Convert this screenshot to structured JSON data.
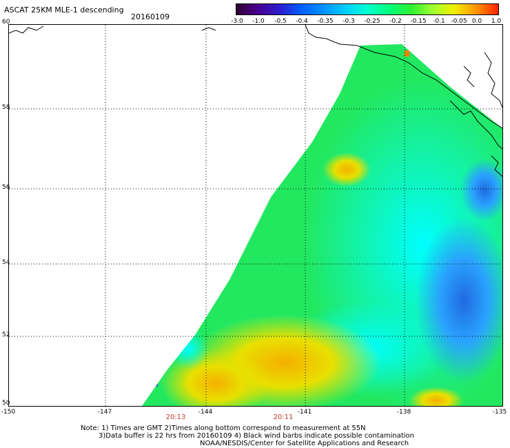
{
  "header": {
    "title": "ASCAT 25KM MLE-1 descending",
    "date": "20160109"
  },
  "colorbar": {
    "ticks": [
      "-3.0",
      "-1.0",
      "-0.5",
      "-0.4",
      "-0.35",
      "-0.3",
      "-0.25",
      "-0.2",
      "-0.15",
      "-0.1",
      "-0.05",
      "0.0",
      "1.0"
    ],
    "colors": [
      "#300030",
      "#4a0090",
      "#2a20d0",
      "#0060ff",
      "#0090ff",
      "#00d0ff",
      "#00ffd0",
      "#00ff80",
      "#30f030",
      "#a0ff30",
      "#f0f000",
      "#ff9000",
      "#ff2000"
    ]
  },
  "axes": {
    "lat_labels": [
      "60",
      "58",
      "56",
      "54",
      "52",
      "50"
    ],
    "lon_labels": [
      "-150",
      "-147",
      "-144",
      "-141",
      "-138",
      "-135"
    ]
  },
  "times": [
    "20:13",
    "20:11"
  ],
  "notes": {
    "line1": "Note: 1) Times are GMT 2)Times along bottom correspond to measurement at 55N",
    "line2": "3)Data buffer is 22 hrs from 20160109 4) Black wind barbs indicate possible contamination",
    "line3": "NOAA/NESDIS/Center for Satellite Applications and Research"
  }
}
